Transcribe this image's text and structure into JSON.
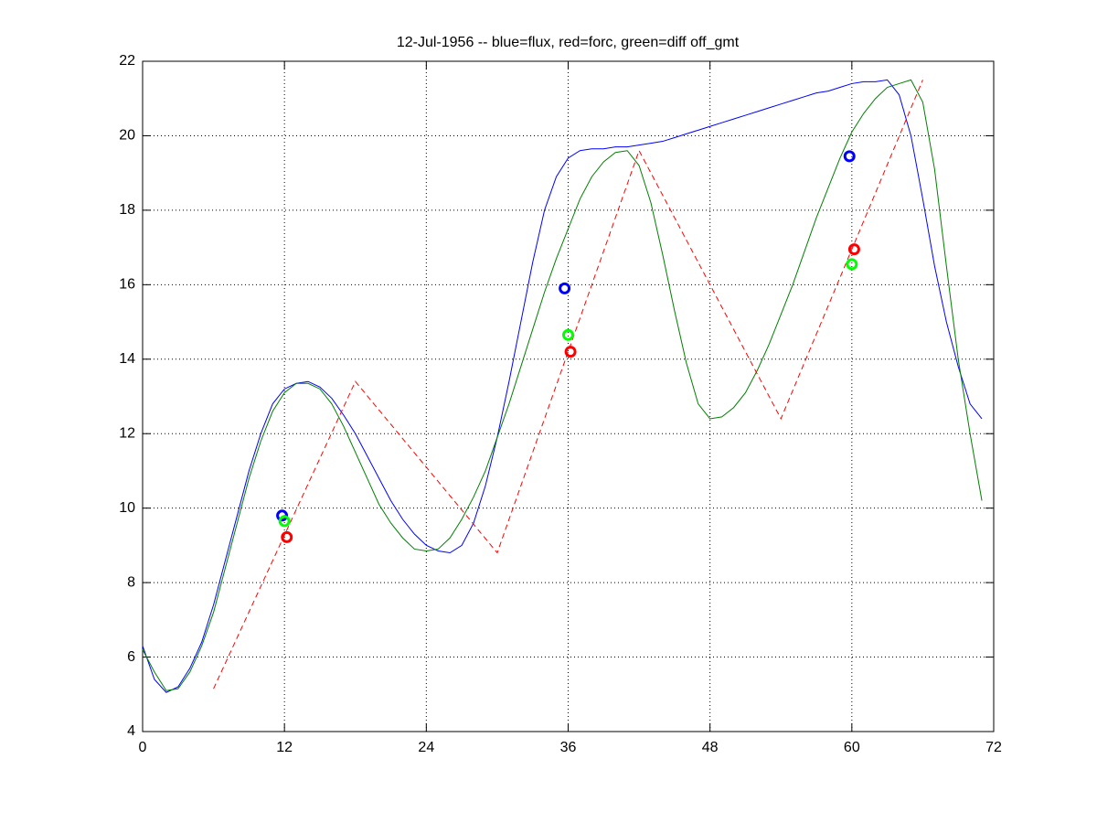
{
  "chart_data": {
    "type": "line",
    "title": "12-Jul-1956 -- blue=flux, red=forc, green=diff off_gmt",
    "xlim": [
      0,
      72
    ],
    "xticks": [
      0,
      12,
      24,
      36,
      48,
      60,
      72
    ],
    "ylim": [
      4,
      22
    ],
    "yticks": [
      4,
      6,
      8,
      10,
      12,
      14,
      16,
      18,
      20,
      22
    ],
    "grid": true,
    "series": [
      {
        "color": "#0000ff",
        "style": "solid",
        "x": [
          0,
          1,
          2,
          3,
          4,
          5,
          6,
          7,
          8,
          9,
          10,
          11,
          12,
          13,
          14,
          15,
          16,
          17,
          18,
          19,
          20,
          21,
          22,
          23,
          24,
          25,
          26,
          27,
          28,
          29,
          30,
          31,
          32,
          33,
          34,
          35,
          36,
          37,
          38,
          39,
          40,
          41,
          42,
          43,
          44,
          45,
          46,
          47,
          48,
          49,
          50,
          51,
          52,
          53,
          54,
          55,
          56,
          57,
          58,
          59,
          60,
          61,
          62,
          63,
          64,
          65,
          66,
          67,
          68,
          69,
          70,
          71
        ],
        "values": [
          6.3,
          5.4,
          5.05,
          5.2,
          5.7,
          6.4,
          7.4,
          8.6,
          9.8,
          11.0,
          12.0,
          12.8,
          13.2,
          13.35,
          13.4,
          13.25,
          12.95,
          12.5,
          12.0,
          11.4,
          10.8,
          10.2,
          9.7,
          9.3,
          9.0,
          8.85,
          8.8,
          9.0,
          9.6,
          10.6,
          11.9,
          13.4,
          15.0,
          16.6,
          18.0,
          18.9,
          19.4,
          19.6,
          19.65,
          19.65,
          19.7,
          19.7,
          19.75,
          19.8,
          19.85,
          19.95,
          20.05,
          20.15,
          20.25,
          20.35,
          20.45,
          20.55,
          20.65,
          20.75,
          20.85,
          20.95,
          21.05,
          21.15,
          21.2,
          21.3,
          21.4,
          21.45,
          21.45,
          21.5,
          21.1,
          20.0,
          18.3,
          16.5,
          15.0,
          13.8,
          12.8,
          12.4
        ]
      },
      {
        "color": "#008000",
        "style": "solid",
        "x": [
          0,
          1,
          2,
          3,
          4,
          5,
          6,
          7,
          8,
          9,
          10,
          11,
          12,
          13,
          14,
          15,
          16,
          17,
          18,
          19,
          20,
          21,
          22,
          23,
          24,
          25,
          26,
          27,
          28,
          29,
          30,
          31,
          32,
          33,
          34,
          35,
          36,
          37,
          38,
          39,
          40,
          41,
          42,
          43,
          44,
          45,
          46,
          47,
          48,
          49,
          50,
          51,
          52,
          53,
          54,
          55,
          56,
          57,
          58,
          59,
          60,
          61,
          62,
          63,
          64,
          65,
          66,
          67,
          68,
          69,
          70,
          71
        ],
        "values": [
          6.2,
          5.6,
          5.1,
          5.15,
          5.6,
          6.3,
          7.2,
          8.4,
          9.6,
          10.8,
          11.8,
          12.6,
          13.1,
          13.35,
          13.35,
          13.2,
          12.8,
          12.2,
          11.5,
          10.8,
          10.1,
          9.6,
          9.2,
          8.9,
          8.85,
          8.9,
          9.2,
          9.7,
          10.3,
          11.0,
          11.9,
          12.8,
          13.8,
          14.8,
          15.8,
          16.7,
          17.5,
          18.3,
          18.9,
          19.3,
          19.55,
          19.6,
          19.2,
          18.2,
          16.8,
          15.3,
          13.9,
          12.8,
          12.4,
          12.45,
          12.7,
          13.1,
          13.7,
          14.4,
          15.2,
          16.0,
          16.9,
          17.8,
          18.6,
          19.4,
          20.1,
          20.6,
          21.0,
          21.3,
          21.4,
          21.5,
          20.9,
          19.1,
          16.5,
          14.0,
          12.0,
          10.2
        ]
      },
      {
        "color": "#ff0000",
        "style": "dashed",
        "x": [
          6,
          18,
          30,
          42,
          54,
          66
        ],
        "values": [
          5.15,
          13.4,
          8.8,
          19.6,
          12.4,
          21.5
        ]
      },
      {
        "color": "#0000ff",
        "style": "circle",
        "x": [
          11.8,
          35.7,
          59.8
        ],
        "values": [
          9.8,
          15.9,
          19.45
        ]
      },
      {
        "color": "#00ff00",
        "style": "circle",
        "x": [
          12.0,
          36.0,
          60.0
        ],
        "values": [
          9.65,
          14.65,
          16.55
        ]
      },
      {
        "color": "#ff0000",
        "style": "circle",
        "x": [
          12.2,
          36.2,
          60.2
        ],
        "values": [
          9.22,
          14.2,
          16.95
        ]
      }
    ]
  }
}
